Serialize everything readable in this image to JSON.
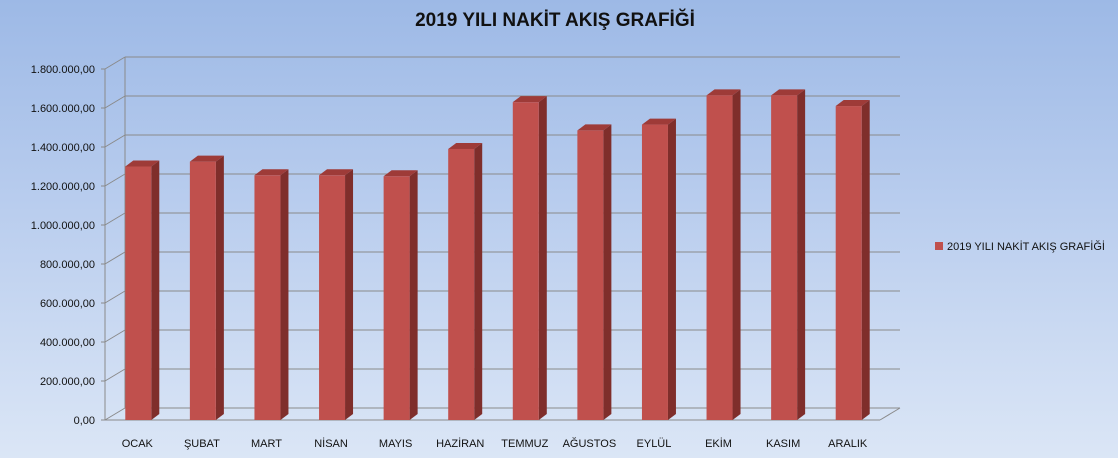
{
  "chart_data": {
    "type": "bar",
    "title": "2019 YILI NAKİT AKIŞ GRAFİĞİ",
    "xlabel": "",
    "ylabel": "",
    "categories": [
      "OCAK",
      "ŞUBAT",
      "MART",
      "NİSAN",
      "MAYIS",
      "HAZİRAN",
      "TEMMUZ",
      "AĞUSTOS",
      "EYLÜL",
      "EKİM",
      "KASIM",
      "ARALIK"
    ],
    "series": [
      {
        "name": "2019 YILI NAKİT AKIŞ GRAFİĞİ",
        "color": "#c0504d",
        "values": [
          1300000,
          1325000,
          1255000,
          1255000,
          1250000,
          1390000,
          1630000,
          1485000,
          1515000,
          1665000,
          1665000,
          1610000
        ]
      }
    ],
    "ylim": [
      0,
      1800000
    ],
    "yticks": [
      "0,00",
      "200.000,00",
      "400.000,00",
      "600.000,00",
      "800.000,00",
      "1.000.000,00",
      "1.200.000,00",
      "1.400.000,00",
      "1.600.000,00",
      "1.800.000,00"
    ],
    "grid": true,
    "legend_position": "right"
  }
}
